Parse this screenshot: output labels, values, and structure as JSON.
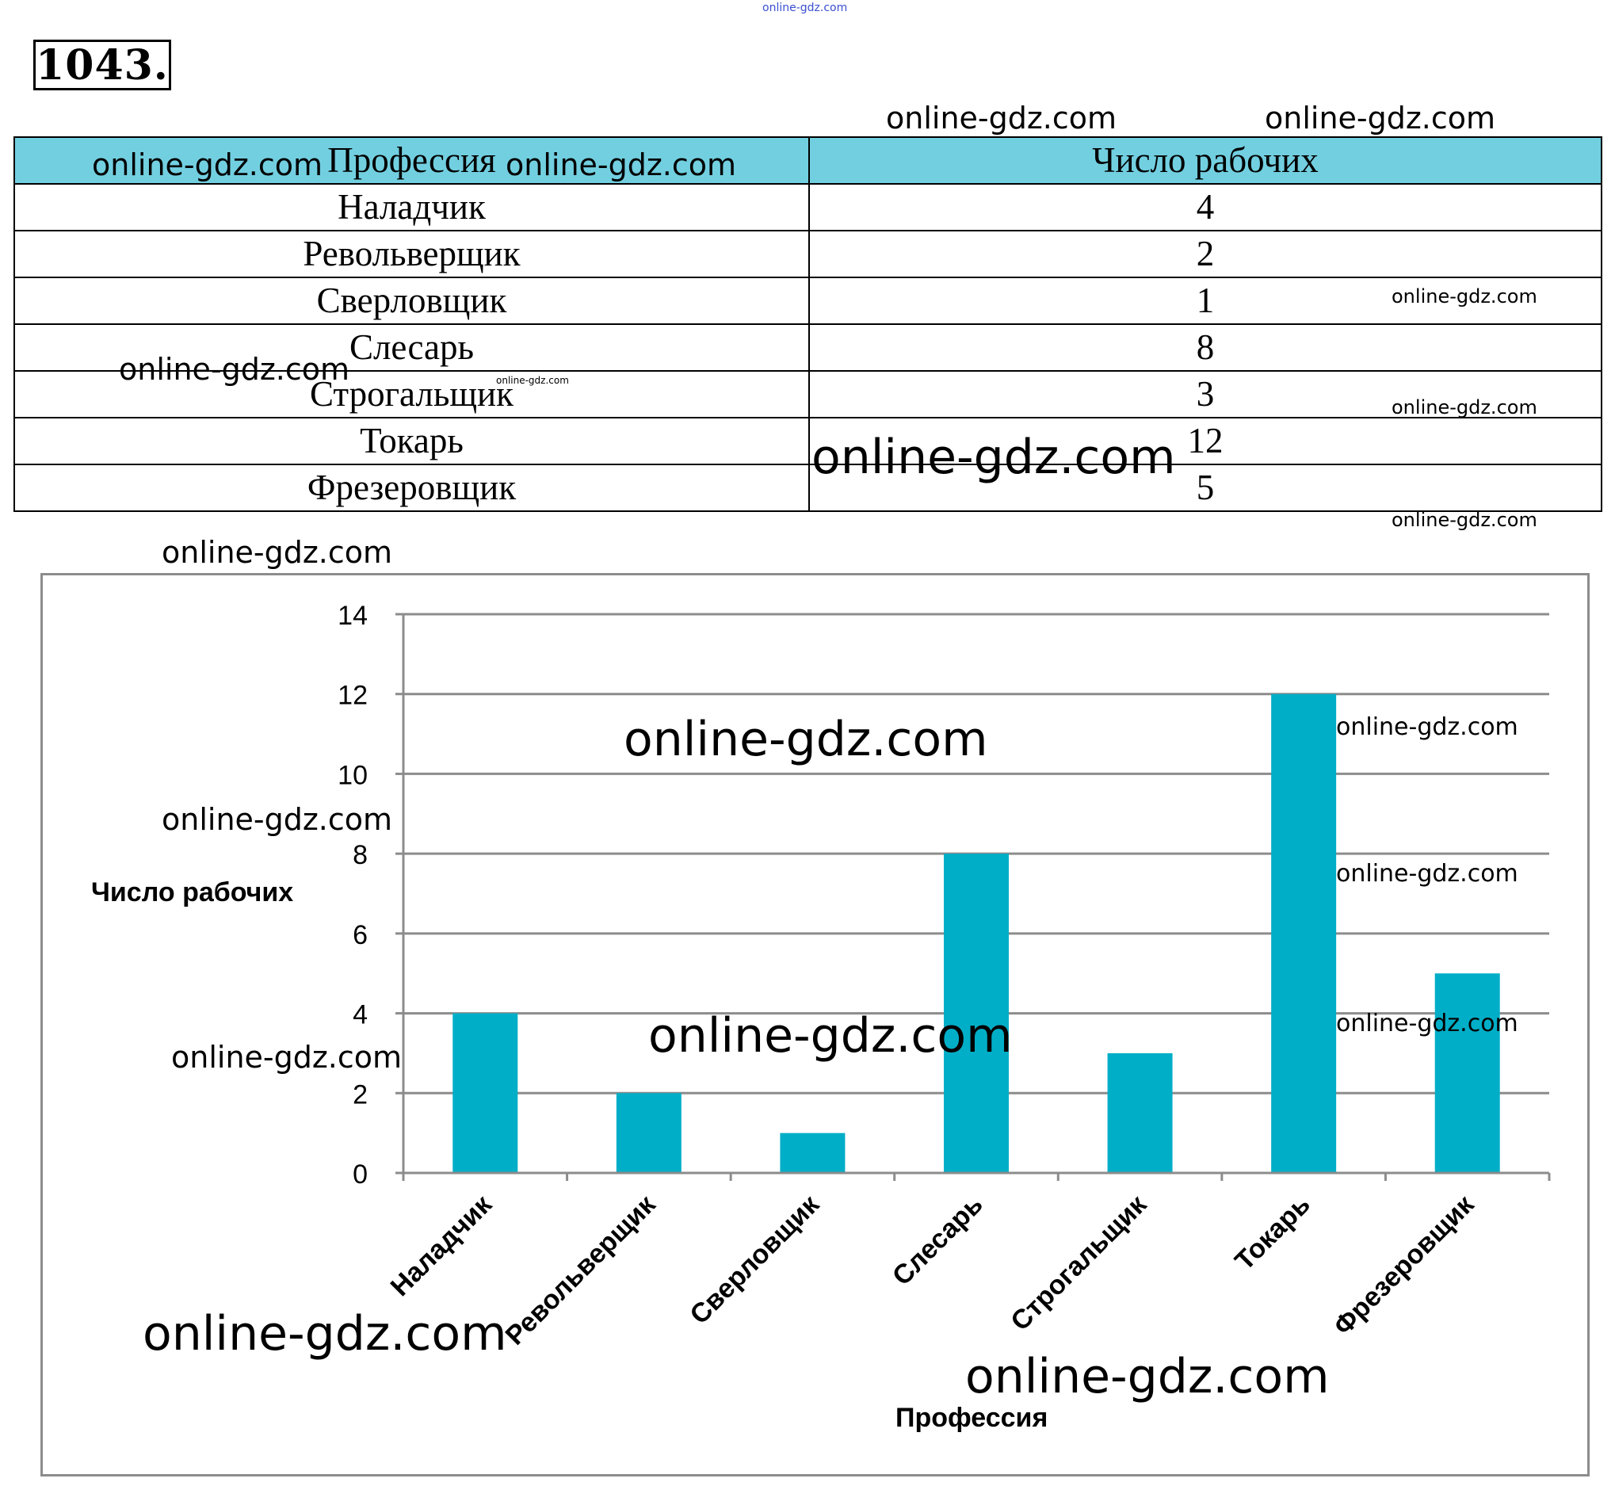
{
  "header": {
    "problem_number": "1043."
  },
  "watermark": "online-gdz.com",
  "table": {
    "columns": [
      "Профессия",
      "Число рабочих"
    ],
    "rows": [
      [
        "Наладчик",
        "4"
      ],
      [
        "Револьверщик",
        "2"
      ],
      [
        "Сверловщик",
        "1"
      ],
      [
        "Слесарь",
        "8"
      ],
      [
        "Строгальщик",
        "3"
      ],
      [
        "Токарь",
        "12"
      ],
      [
        "Фрезеровщик",
        "5"
      ]
    ]
  },
  "chart_data": {
    "type": "bar",
    "categories": [
      "Наладчик",
      "Револьверщик",
      "Сверловщик",
      "Слесарь",
      "Строгальщик",
      "Токарь",
      "Фрезеровщик"
    ],
    "values": [
      4,
      2,
      1,
      8,
      3,
      12,
      5
    ],
    "xlabel": "Профессия",
    "ylabel": "Число рабочих",
    "ylim": [
      0,
      14
    ],
    "yticks": [
      "0",
      "2",
      "4",
      "6",
      "8",
      "10",
      "12",
      "14"
    ],
    "grid": true,
    "bar_color": "#00aec7",
    "grid_color": "#8c8c8c"
  }
}
